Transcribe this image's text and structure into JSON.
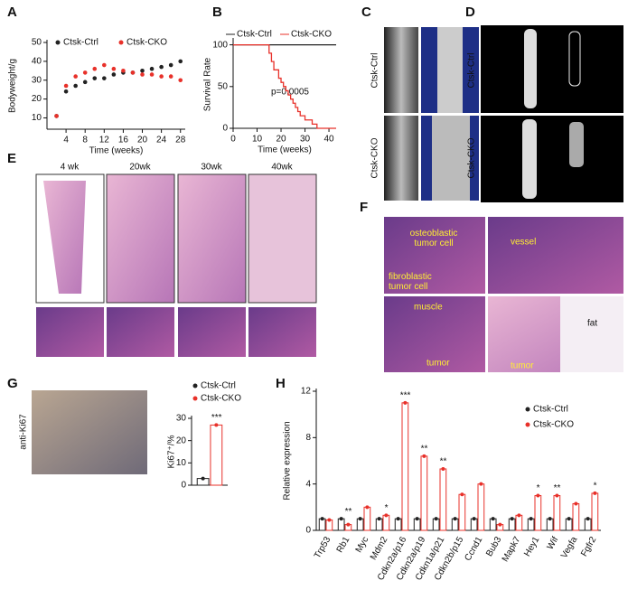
{
  "figure": {
    "panel_labels": [
      "A",
      "B",
      "C",
      "D",
      "E",
      "F",
      "G",
      "H"
    ],
    "images": {
      "C": {
        "labels": [
          "Ctsk-Ctrl",
          "Ctsk-CKO"
        ]
      },
      "D": {
        "labels": [
          "Ctsk-Ctrl",
          "Ctsk-CKO"
        ]
      },
      "E": {
        "labels": [
          "4 wk",
          "20wk",
          "30wk",
          "40wk"
        ]
      },
      "F": {
        "labels": [
          [
            "osteoblastic",
            "tumor cell"
          ],
          [
            "vessel"
          ],
          [
            "fibroblastic",
            "tumor cell"
          ],
          [
            "muscle"
          ],
          [
            "tumor"
          ],
          [
            "tumor"
          ],
          [
            "fat"
          ]
        ]
      },
      "G": {
        "labels": [
          "anti-Ki67"
        ]
      }
    }
  },
  "chart_data": [
    {
      "type": "scatter",
      "xlabel": "Time (weeks)",
      "ylabel": "Bodyweight/g",
      "x": [
        2,
        4,
        6,
        8,
        10,
        12,
        14,
        16,
        18,
        20,
        22,
        24,
        26,
        28
      ],
      "series": [
        {
          "name": "Ctsk-Ctrl",
          "color": "#222222",
          "values": [
            11,
            24,
            27,
            29,
            31,
            31,
            33,
            34,
            34,
            35,
            36,
            37,
            38,
            40
          ]
        },
        {
          "name": "Ctsk-CKO",
          "color": "#e8312a",
          "values": [
            11,
            27,
            32,
            34,
            36,
            38,
            36,
            35,
            34,
            33,
            33,
            32,
            32,
            30
          ]
        }
      ],
      "xlim": [
        0,
        29
      ],
      "ylim": [
        4,
        50
      ],
      "xticks": [
        4,
        8,
        12,
        16,
        20,
        24,
        28
      ],
      "yticks": [
        10,
        20,
        30,
        40,
        50
      ]
    },
    {
      "type": "step",
      "xlabel": "Time (weeks)",
      "ylabel": "Survival Rate",
      "annotation": "p=0.0005",
      "x": [
        0,
        14,
        15,
        16,
        17,
        19,
        20,
        21,
        22,
        23,
        24,
        25,
        26,
        27,
        28,
        30,
        33,
        35,
        43
      ],
      "series": [
        {
          "name": "Ctsk-Ctrl",
          "color": "#222222",
          "values": [
            100,
            100,
            100,
            100,
            100,
            100,
            100,
            100,
            100,
            100,
            100,
            100,
            100,
            100,
            100,
            100,
            100,
            100,
            100
          ]
        },
        {
          "name": "Ctsk-CKO",
          "color": "#e8312a",
          "values": [
            100,
            100,
            90,
            80,
            70,
            60,
            55,
            50,
            45,
            40,
            35,
            30,
            25,
            20,
            15,
            10,
            5,
            0,
            0
          ]
        }
      ],
      "xlim": [
        0,
        43
      ],
      "ylim": [
        0,
        105
      ],
      "xticks": [
        0,
        10,
        20,
        30,
        40
      ],
      "yticks": [
        0,
        50,
        100
      ]
    },
    {
      "type": "bar",
      "ylabel": "Ki67⁺/%",
      "categories": [
        null
      ],
      "significance": [
        "***"
      ],
      "series": [
        {
          "name": "Ctsk-Ctrl",
          "color": "#222222",
          "values": [
            3
          ]
        },
        {
          "name": "Ctsk-CKO",
          "color": "#e8312a",
          "values": [
            27
          ]
        }
      ],
      "ylim": [
        0,
        30
      ],
      "yticks": [
        0,
        10,
        20,
        30
      ]
    },
    {
      "type": "bar",
      "ylabel": "Relative expression",
      "categories": [
        "Trp53",
        "Rb1",
        "Myc",
        "Mdm2",
        "Cdkn2a/p16",
        "Cdkn2a/p19",
        "Cdkn1a/p21",
        "Cdkn2b/p15",
        "Ccnd1",
        "Bub3",
        "Mapk7",
        "Hey1",
        "Wif",
        "Vegfa",
        "Fgfr2"
      ],
      "significance": [
        null,
        "**",
        null,
        "*",
        "***",
        "**",
        "**",
        null,
        null,
        null,
        null,
        "*",
        "**",
        null,
        "*"
      ],
      "series": [
        {
          "name": "Ctsk-Ctrl",
          "color": "#222222",
          "values": [
            1,
            1,
            1,
            1,
            1,
            1,
            1,
            1,
            1,
            1,
            1,
            1,
            1,
            1,
            1
          ]
        },
        {
          "name": "Ctsk-CKO",
          "color": "#e8312a",
          "values": [
            0.9,
            0.5,
            2.0,
            1.3,
            11,
            6.4,
            5.3,
            3.1,
            4.0,
            0.5,
            1.3,
            3.0,
            3.0,
            2.3,
            3.2
          ]
        }
      ],
      "ylim": [
        0,
        12
      ],
      "yticks": [
        0,
        4,
        8,
        12
      ]
    }
  ]
}
